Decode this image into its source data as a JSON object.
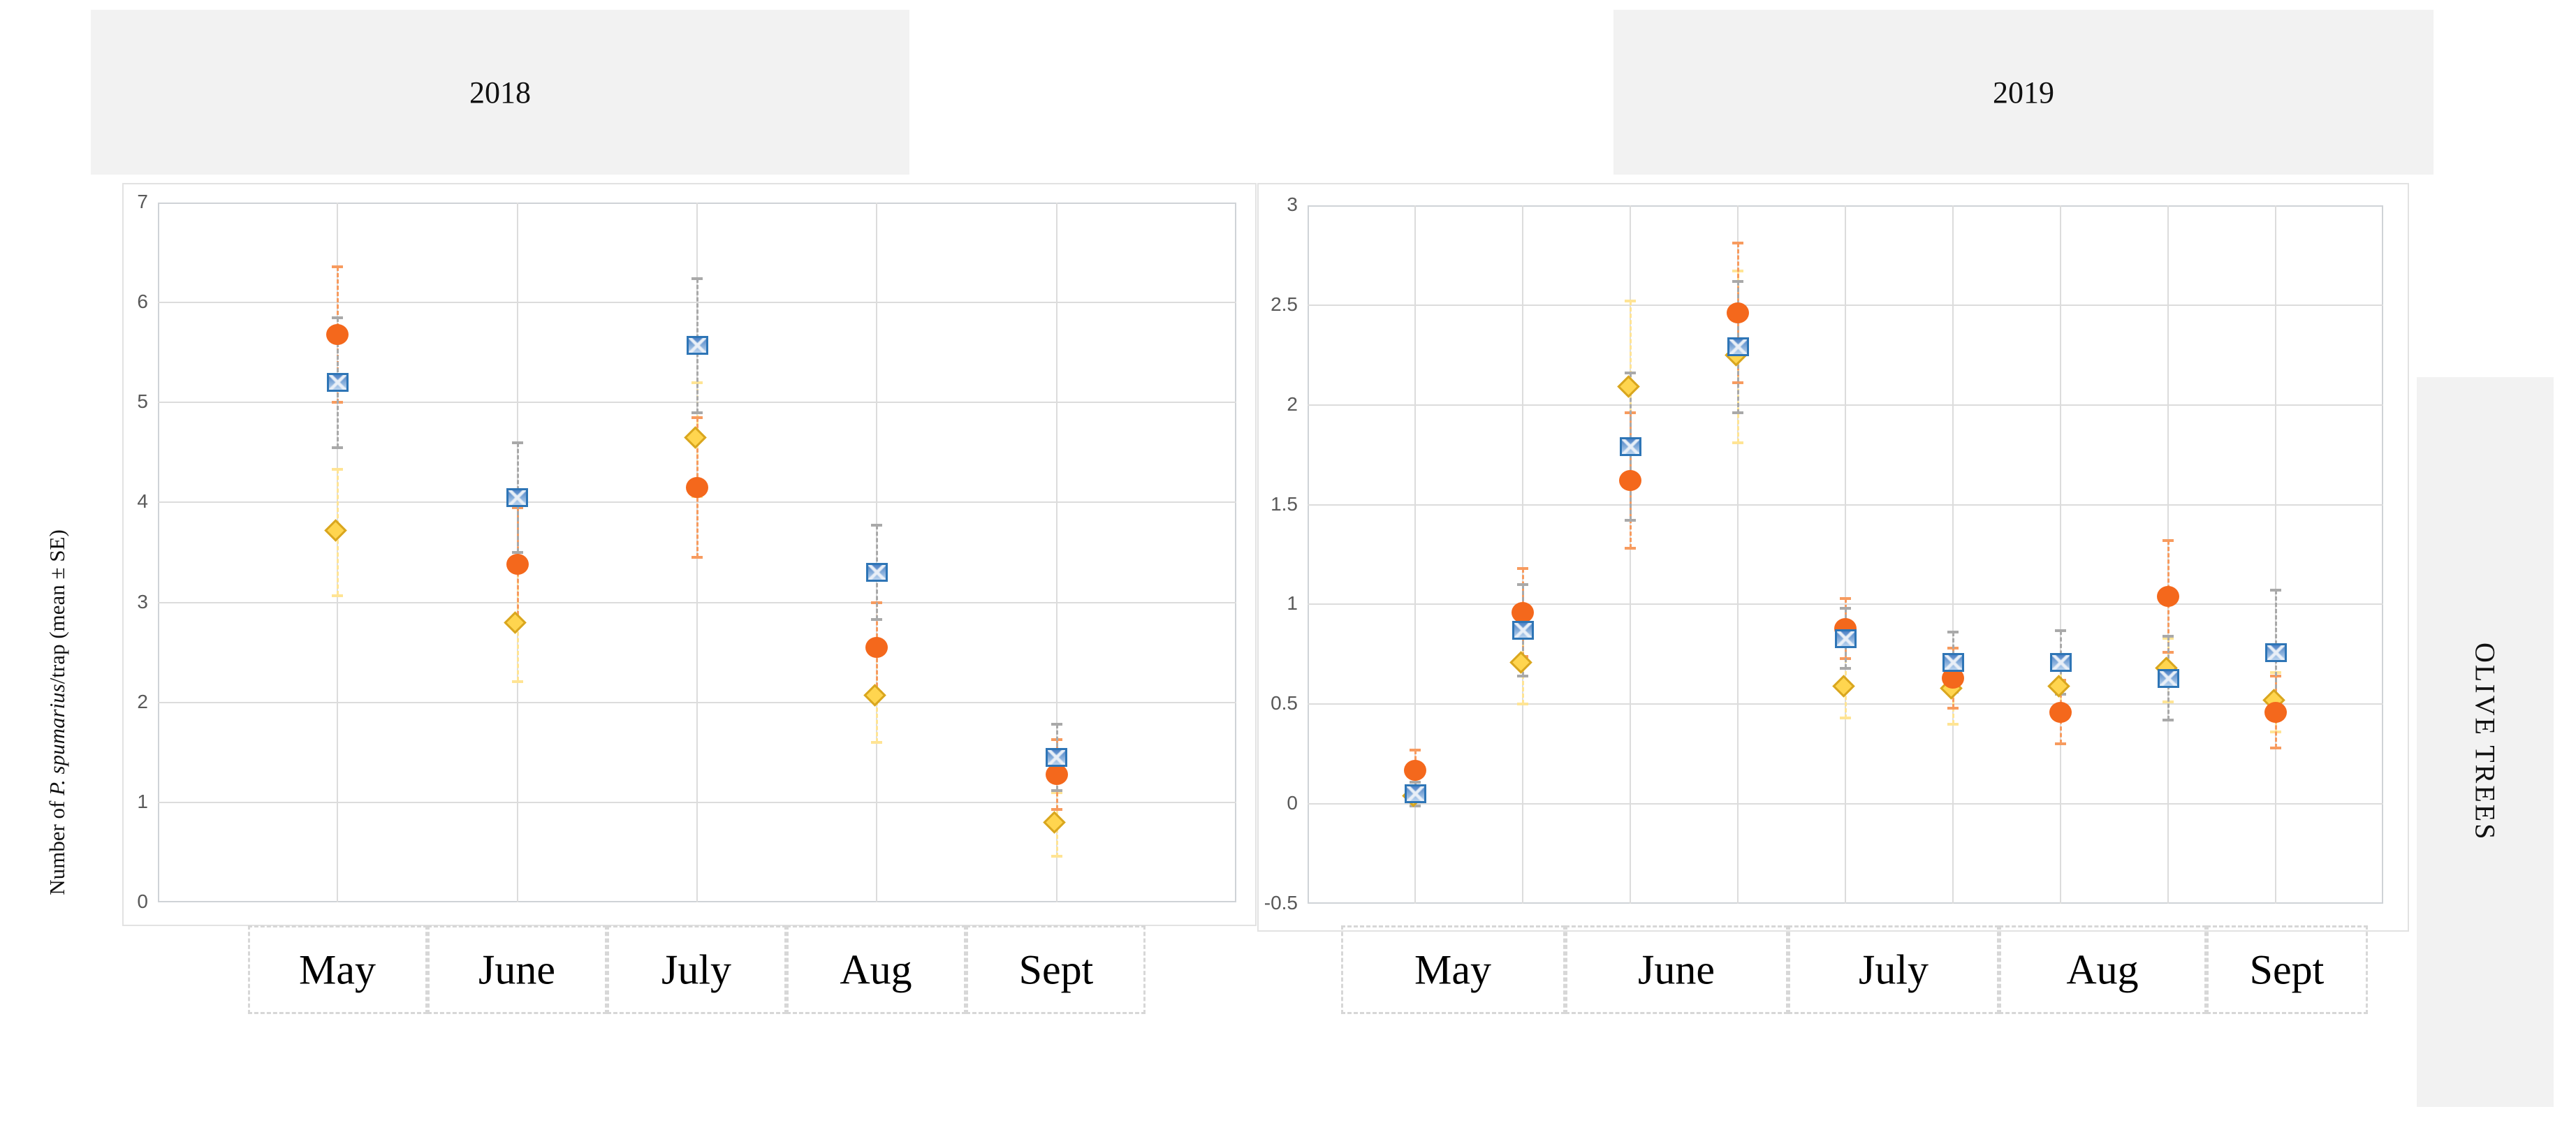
{
  "header": {
    "years": [
      "2018",
      "2019"
    ]
  },
  "y_axis_title": {
    "prefix": "Number of ",
    "species": "P. spumarius",
    "suffix": "/trap (mean ± SE)"
  },
  "side_label": "OLIVE TREES",
  "series": [
    {
      "id": "diamond_yellow",
      "marker": "diamond",
      "color": "#FFD54F",
      "border_color": "#D9A61E",
      "errorbar_color": "#FFE494"
    },
    {
      "id": "circle_orange",
      "marker": "circle",
      "color": "#F4681C",
      "border_color": "#F4681C",
      "errorbar_color": "#F79B5F"
    },
    {
      "id": "square_blue",
      "marker": "patterned-square",
      "color": "#9DC3E6",
      "border_color": "#2E75B6",
      "errorbar_color": "#A9A9A9"
    }
  ],
  "chart_data": [
    {
      "type": "scatter",
      "title": "2018",
      "ylabel": "Number of P. spumarius/trap (mean ± SE)",
      "ylim": [
        0,
        7
      ],
      "ytick_step": 1,
      "yticks": [
        {
          "v": 0,
          "label": "0"
        },
        {
          "v": 1,
          "label": "1"
        },
        {
          "v": 2,
          "label": "2"
        },
        {
          "v": 3,
          "label": "3"
        },
        {
          "v": 4,
          "label": "4"
        },
        {
          "v": 5,
          "label": "5"
        },
        {
          "v": 6,
          "label": "6"
        },
        {
          "v": 7,
          "label": "7"
        }
      ],
      "grid": true,
      "legend": "none",
      "categories": [
        "May",
        "June",
        "July",
        "Aug",
        "Sept"
      ],
      "slots_total": 6,
      "months": [
        {
          "label": "May",
          "slots": [
            1
          ]
        },
        {
          "label": "June",
          "slots": [
            2
          ]
        },
        {
          "label": "July",
          "slots": [
            3
          ]
        },
        {
          "label": "Aug",
          "slots": [
            4
          ]
        },
        {
          "label": "Sept",
          "slots": [
            5
          ]
        }
      ],
      "clusters": [
        {
          "month": "May",
          "slot": 1,
          "points": {
            "circle_orange": {
              "mean": 5.68,
              "se": 0.68
            },
            "square_blue": {
              "mean": 5.2,
              "se": 0.65
            },
            "diamond_yellow": {
              "mean": 3.7,
              "se": 0.63
            }
          }
        },
        {
          "month": "June",
          "slot": 2,
          "points": {
            "square_blue": {
              "mean": 4.05,
              "se": 0.55
            },
            "circle_orange": {
              "mean": 3.38,
              "se": 0.57
            },
            "diamond_yellow": {
              "mean": 2.78,
              "se": 0.57
            }
          }
        },
        {
          "month": "July",
          "slot": 3,
          "points": {
            "square_blue": {
              "mean": 5.57,
              "se": 0.67
            },
            "diamond_yellow": {
              "mean": 4.63,
              "se": 0.57
            },
            "circle_orange": {
              "mean": 4.15,
              "se": 0.7
            }
          }
        },
        {
          "month": "Aug",
          "slot": 4,
          "points": {
            "square_blue": {
              "mean": 3.3,
              "se": 0.47
            },
            "circle_orange": {
              "mean": 2.55,
              "se": 0.45
            },
            "diamond_yellow": {
              "mean": 2.05,
              "se": 0.45
            }
          }
        },
        {
          "month": "Sept",
          "slot": 5,
          "points": {
            "square_blue": {
              "mean": 1.45,
              "se": 0.33
            },
            "circle_orange": {
              "mean": 1.28,
              "se": 0.35
            },
            "diamond_yellow": {
              "mean": 0.78,
              "se": 0.32
            }
          }
        }
      ]
    },
    {
      "type": "scatter",
      "title": "2019",
      "ylabel": "Number of P. spumarius/trap (mean ± SE)",
      "ylim": [
        -0.5,
        3
      ],
      "ytick_step": 0.5,
      "yticks": [
        {
          "v": -0.5,
          "label": "-0.5"
        },
        {
          "v": 0,
          "label": "0"
        },
        {
          "v": 0.5,
          "label": "0.5"
        },
        {
          "v": 1,
          "label": "1"
        },
        {
          "v": 1.5,
          "label": "1.5"
        },
        {
          "v": 2,
          "label": "2"
        },
        {
          "v": 2.5,
          "label": "2.5"
        },
        {
          "v": 3,
          "label": "3"
        }
      ],
      "grid": true,
      "legend": "none",
      "categories": [
        "May",
        "June",
        "July",
        "Aug",
        "Sept"
      ],
      "slots_total": 10,
      "months": [
        {
          "label": "May",
          "slots": [
            1,
            2
          ]
        },
        {
          "label": "June",
          "slots": [
            3,
            4
          ]
        },
        {
          "label": "July",
          "slots": [
            5,
            6
          ]
        },
        {
          "label": "Aug",
          "slots": [
            7,
            8
          ]
        },
        {
          "label": "Sept",
          "slots": [
            9
          ]
        }
      ],
      "clusters": [
        {
          "month": "May",
          "slot": 1,
          "points": {
            "circle_orange": {
              "mean": 0.17,
              "se": 0.1
            },
            "square_blue": {
              "mean": 0.05,
              "se": 0.06
            },
            "diamond_yellow": {
              "mean": 0.03,
              "se": 0.04
            }
          }
        },
        {
          "month": "May",
          "slot": 2,
          "points": {
            "circle_orange": {
              "mean": 0.96,
              "se": 0.22
            },
            "square_blue": {
              "mean": 0.87,
              "se": 0.23
            },
            "diamond_yellow": {
              "mean": 0.7,
              "se": 0.2
            }
          }
        },
        {
          "month": "June",
          "slot": 3,
          "points": {
            "diamond_yellow": {
              "mean": 2.08,
              "se": 0.44
            },
            "square_blue": {
              "mean": 1.79,
              "se": 0.37
            },
            "circle_orange": {
              "mean": 1.62,
              "se": 0.34
            }
          }
        },
        {
          "month": "June",
          "slot": 4,
          "points": {
            "circle_orange": {
              "mean": 2.46,
              "se": 0.35
            },
            "square_blue": {
              "mean": 2.29,
              "se": 0.33
            },
            "diamond_yellow": {
              "mean": 2.24,
              "se": 0.43
            }
          }
        },
        {
          "month": "July",
          "slot": 5,
          "points": {
            "circle_orange": {
              "mean": 0.88,
              "se": 0.15
            },
            "square_blue": {
              "mean": 0.83,
              "se": 0.15
            },
            "diamond_yellow": {
              "mean": 0.58,
              "se": 0.15
            }
          }
        },
        {
          "month": "July",
          "slot": 6,
          "points": {
            "square_blue": {
              "mean": 0.71,
              "se": 0.15
            },
            "circle_orange": {
              "mean": 0.63,
              "se": 0.15
            },
            "diamond_yellow": {
              "mean": 0.57,
              "se": 0.17
            }
          }
        },
        {
          "month": "Aug",
          "slot": 7,
          "points": {
            "square_blue": {
              "mean": 0.71,
              "se": 0.16
            },
            "diamond_yellow": {
              "mean": 0.58,
              "se": 0.13
            },
            "circle_orange": {
              "mean": 0.46,
              "se": 0.16
            }
          }
        },
        {
          "month": "Aug",
          "slot": 8,
          "points": {
            "circle_orange": {
              "mean": 1.04,
              "se": 0.28
            },
            "diamond_yellow": {
              "mean": 0.67,
              "se": 0.16
            },
            "square_blue": {
              "mean": 0.63,
              "se": 0.21
            }
          }
        },
        {
          "month": "Sept",
          "slot": 9,
          "points": {
            "square_blue": {
              "mean": 0.76,
              "se": 0.31
            },
            "diamond_yellow": {
              "mean": 0.51,
              "se": 0.15
            },
            "circle_orange": {
              "mean": 0.46,
              "se": 0.18
            }
          }
        }
      ]
    }
  ]
}
